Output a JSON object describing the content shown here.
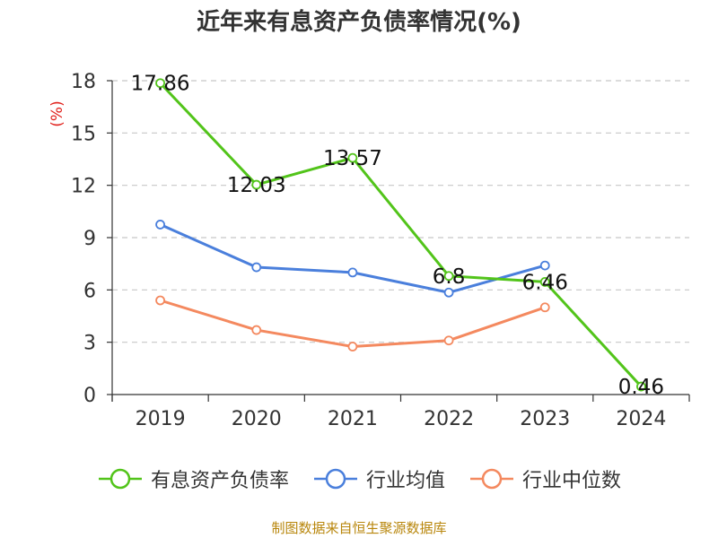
{
  "title": "近年来有息资产负债率情况(%)",
  "source": "制图数据来自恒生聚源数据库",
  "chart_data": {
    "type": "line",
    "title": "近年来有息资产负债率情况(%)",
    "ylabel": "(%)",
    "xlabel": "",
    "categories": [
      "2019",
      "2020",
      "2021",
      "2022",
      "2023",
      "2024"
    ],
    "ylim": [
      0,
      18
    ],
    "yticks": [
      0,
      3,
      6,
      9,
      12,
      15,
      18
    ],
    "grid": true,
    "legend": "bottom",
    "series": [
      {
        "name": "有息资产负债率",
        "color": "#52c41a",
        "values": [
          17.86,
          12.03,
          13.57,
          6.8,
          6.46,
          0.46
        ],
        "labels": [
          "17.86",
          "12.03",
          "13.57",
          "6.8",
          "6.46",
          "0.46"
        ]
      },
      {
        "name": "行业均值",
        "color": "#4a7fdc",
        "values": [
          9.75,
          7.3,
          7.0,
          5.85,
          7.4,
          null
        ]
      },
      {
        "name": "行业中位数",
        "color": "#f4895f",
        "values": [
          5.4,
          3.7,
          2.75,
          3.1,
          5.0,
          null
        ]
      }
    ]
  }
}
